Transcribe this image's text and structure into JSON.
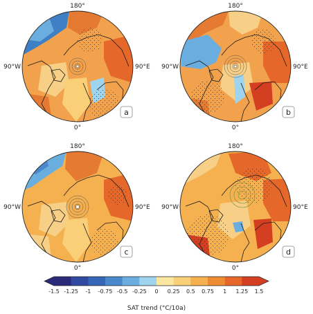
{
  "figure": {
    "panels": [
      {
        "id": "a",
        "label": "a",
        "lon_top": "180°",
        "lon_left": "90°W",
        "lon_right": "90°E",
        "lon_bottom": "0°"
      },
      {
        "id": "b",
        "label": "b",
        "lon_top": "180°",
        "lon_left": "90°W",
        "lon_right": "90°E",
        "lon_bottom": "0°"
      },
      {
        "id": "c",
        "label": "c",
        "lon_top": "180°",
        "lon_left": "90°W",
        "lon_right": "90°E",
        "lon_bottom": "0°"
      },
      {
        "id": "d",
        "label": "d",
        "lon_top": "180°",
        "lon_left": "90°W",
        "lon_right": "90°E",
        "lon_bottom": "0°"
      }
    ],
    "colorbar": {
      "title": "SAT trend (°C/10a)",
      "ticks": [
        "-1.5",
        "-1.25",
        "-1",
        "-0.75",
        "-0.5",
        "-0.25",
        "0",
        "0.25",
        "0.5",
        "0.75",
        "1",
        "1.25",
        "1.5"
      ],
      "colors": [
        "#2a2a7a",
        "#2f4aa0",
        "#3566b8",
        "#4a88cc",
        "#6aaee0",
        "#9fd4ef",
        "#fbe7a0",
        "#f9cf78",
        "#f5b050",
        "#ee8c34",
        "#e5672a",
        "#d43f22"
      ]
    },
    "palette": {
      "ocean_warm": "#f2a24c",
      "deep_warm": "#e57a32",
      "pale_warm": "#f8cf86",
      "cool": "#6aaee0",
      "deep_cool": "#3f7fc3",
      "coast": "#1a1a1a"
    }
  }
}
